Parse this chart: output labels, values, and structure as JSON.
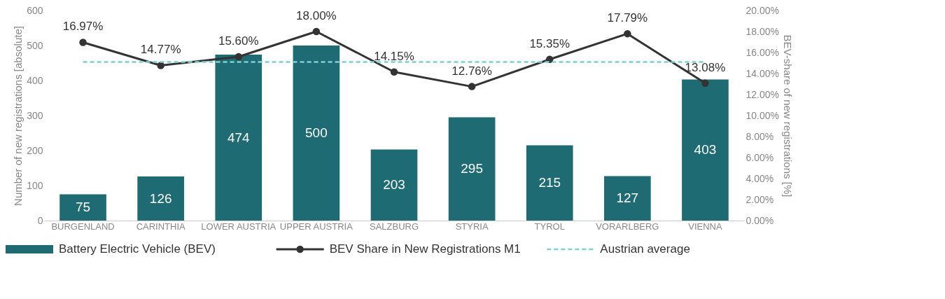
{
  "chart_data": {
    "type": "bar",
    "ylabel": "Number of new registrations [absolute]",
    "y2label": "BEV-share of new registrations [%]",
    "categories": [
      "BURGENLAND",
      "CARINTHIA",
      "LOWER AUSTRIA",
      "UPPER AUSTRIA",
      "SALZBURG",
      "STYRIA",
      "TYROL",
      "VORARLBERG",
      "VIENNA"
    ],
    "series": [
      {
        "name": "Battery Electric Vehicle (BEV)",
        "color": "#1f6b73",
        "values": [
          75,
          126,
          474,
          500,
          203,
          295,
          215,
          127,
          403
        ],
        "value_labels": [
          "75",
          "126",
          "474",
          "500",
          "203",
          "295",
          "215",
          "127",
          "403"
        ]
      },
      {
        "name": "BEV Share in New Registrations M1",
        "type": "line",
        "axis": "y2",
        "color": "#333333",
        "values": [
          16.97,
          14.77,
          15.6,
          18.0,
          14.15,
          12.76,
          15.35,
          17.79,
          13.08
        ],
        "value_labels": [
          "16.97%",
          "14.77%",
          "15.60%",
          "18.00%",
          "14.15%",
          "12.76%",
          "15.35%",
          "17.79%",
          "13.08%"
        ]
      }
    ],
    "ref_lines": [
      {
        "axis": "y2",
        "value": 15.1,
        "label": "Austrian average",
        "color": "#7fd1d1",
        "line_style": "dashed"
      }
    ],
    "ylim": [
      0,
      600
    ],
    "yticks": [
      0,
      100,
      200,
      300,
      400,
      500,
      600
    ],
    "y2lim": [
      0,
      20
    ],
    "y2ticks": [
      {
        "value": 0,
        "label": "0.00%"
      },
      {
        "value": 2,
        "label": "2.00%"
      },
      {
        "value": 4,
        "label": "4.00%"
      },
      {
        "value": 6,
        "label": "6.00%"
      },
      {
        "value": 8,
        "label": "8.00%"
      },
      {
        "value": 10,
        "label": "10.00%"
      },
      {
        "value": 12,
        "label": "12.00%"
      },
      {
        "value": 14,
        "label": "14.00%"
      },
      {
        "value": 16,
        "label": "16.00%"
      },
      {
        "value": 18,
        "label": "18.00%"
      },
      {
        "value": 20,
        "label": "20.00%"
      }
    ],
    "marker": "circle",
    "grid": false,
    "legend": "bottom"
  }
}
